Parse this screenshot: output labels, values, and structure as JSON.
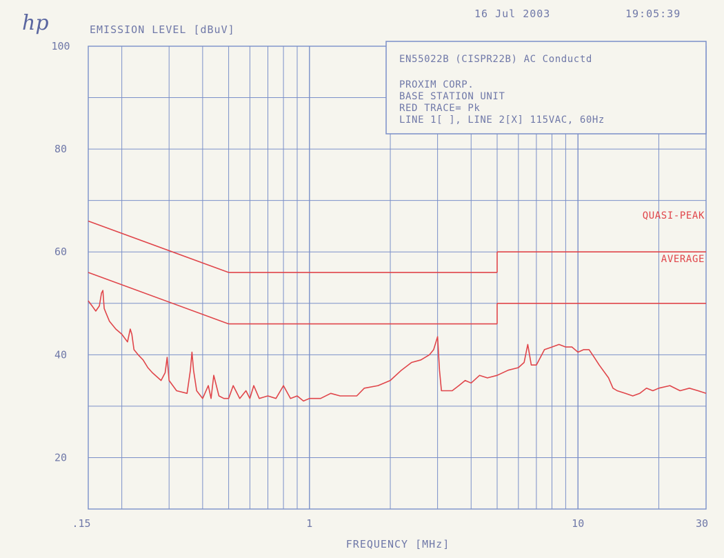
{
  "header": {
    "logo": "hp",
    "ylabel": "EMISSION LEVEL [dBuV]",
    "date": "16 Jul 2003",
    "time": "19:05:39"
  },
  "info_box": {
    "lines": [
      "EN55022B (CISPR22B) AC Conductd",
      "PROXIM CORP.",
      "BASE STATION UNIT",
      "RED TRACE= Pk",
      "LINE 1[ ], LINE 2[X] 115VAC, 60Hz"
    ]
  },
  "colors": {
    "grid": "#7a8fc8",
    "text": "#6f78a8",
    "trace": "#e0454a",
    "background": "#f6f5ee"
  },
  "chart_data": {
    "type": "line",
    "xlabel": "FREQUENCY [MHz]",
    "ylabel": "EMISSION LEVEL [dBuV]",
    "x_scale": "log",
    "xlim": [
      0.15,
      30
    ],
    "ylim": [
      10,
      100
    ],
    "x_ticks": [
      {
        "value": 0.15,
        "label": ".15"
      },
      {
        "value": 1,
        "label": "1"
      },
      {
        "value": 10,
        "label": "10"
      },
      {
        "value": 30,
        "label": "30"
      }
    ],
    "y_ticks": [
      {
        "value": 100,
        "label": "100"
      },
      {
        "value": 80,
        "label": "80"
      },
      {
        "value": 60,
        "label": "60"
      },
      {
        "value": 40,
        "label": "40"
      },
      {
        "value": 20,
        "label": "20"
      }
    ],
    "grid": true,
    "limit_lines": [
      {
        "label": "QUASI-PEAK",
        "segments": [
          [
            [
              0.15,
              66
            ],
            [
              0.5,
              56
            ]
          ],
          [
            [
              0.5,
              56
            ],
            [
              5,
              56
            ]
          ],
          [
            [
              5,
              56
            ],
            [
              5,
              60
            ]
          ],
          [
            [
              5,
              60
            ],
            [
              30,
              60
            ]
          ]
        ]
      },
      {
        "label": "AVERAGE",
        "segments": [
          [
            [
              0.15,
              56
            ],
            [
              0.5,
              46
            ]
          ],
          [
            [
              0.5,
              46
            ],
            [
              5,
              46
            ]
          ],
          [
            [
              5,
              46
            ],
            [
              5,
              50
            ]
          ],
          [
            [
              5,
              50
            ],
            [
              30,
              50
            ]
          ]
        ]
      }
    ],
    "series": [
      {
        "name": "Pk",
        "x": [
          0.15,
          0.155,
          0.16,
          0.165,
          0.168,
          0.17,
          0.172,
          0.175,
          0.18,
          0.19,
          0.2,
          0.21,
          0.215,
          0.218,
          0.222,
          0.23,
          0.24,
          0.25,
          0.26,
          0.28,
          0.29,
          0.295,
          0.3,
          0.32,
          0.35,
          0.36,
          0.365,
          0.37,
          0.38,
          0.4,
          0.42,
          0.43,
          0.44,
          0.46,
          0.48,
          0.5,
          0.52,
          0.55,
          0.58,
          0.6,
          0.62,
          0.65,
          0.7,
          0.75,
          0.8,
          0.85,
          0.9,
          0.95,
          1.0,
          1.1,
          1.2,
          1.3,
          1.4,
          1.5,
          1.6,
          1.8,
          2.0,
          2.2,
          2.4,
          2.6,
          2.8,
          2.9,
          3.0,
          3.05,
          3.1,
          3.2,
          3.4,
          3.6,
          3.8,
          4.0,
          4.3,
          4.6,
          5.0,
          5.5,
          6.0,
          6.3,
          6.5,
          6.7,
          7.0,
          7.5,
          8.0,
          8.5,
          9.0,
          9.5,
          10.0,
          10.5,
          11.0,
          11.5,
          12.0,
          13.0,
          13.5,
          14.0,
          15.0,
          16.0,
          17.0,
          18.0,
          19.0,
          20.0,
          22.0,
          24.0,
          26.0,
          28.0,
          30.0
        ],
        "values": [
          50.5,
          49.5,
          48.5,
          49.5,
          52,
          52.5,
          49,
          48,
          46.5,
          45,
          44,
          42.5,
          45,
          44,
          41,
          40,
          39,
          37.5,
          36.5,
          35,
          36.5,
          39.5,
          35,
          33,
          32.5,
          37,
          40.5,
          37,
          33,
          31.5,
          34,
          31.5,
          36,
          32,
          31.5,
          31.5,
          34,
          31.5,
          33,
          31.5,
          34,
          31.5,
          32,
          31.5,
          34,
          31.5,
          32,
          31,
          31.5,
          31.5,
          32.5,
          32,
          32,
          32,
          33.5,
          34,
          35,
          37,
          38.5,
          39,
          40,
          41,
          43.5,
          37,
          33,
          33,
          33,
          34,
          35,
          34.5,
          36,
          35.5,
          36,
          37,
          37.5,
          38.5,
          42,
          38,
          38,
          41,
          41.5,
          42,
          41.5,
          41.5,
          40.5,
          41,
          41,
          39.5,
          38,
          35.5,
          33.5,
          33,
          32.5,
          32,
          32.5,
          33.5,
          33,
          33.5,
          34,
          33,
          33.5,
          33,
          32.5
        ]
      }
    ]
  }
}
